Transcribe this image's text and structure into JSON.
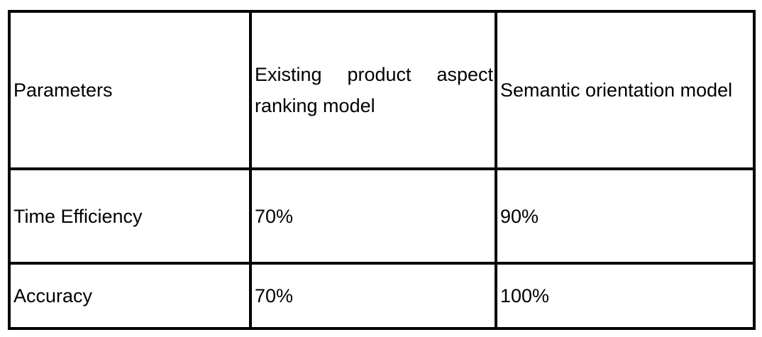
{
  "table": {
    "headers": [
      "Parameters",
      "Existing product aspect ranking model",
      "Semantic orientation model"
    ],
    "rows": [
      [
        "Time Efficiency",
        "70%",
        "90%"
      ],
      [
        "Accuracy",
        "70%",
        "100%"
      ]
    ]
  }
}
